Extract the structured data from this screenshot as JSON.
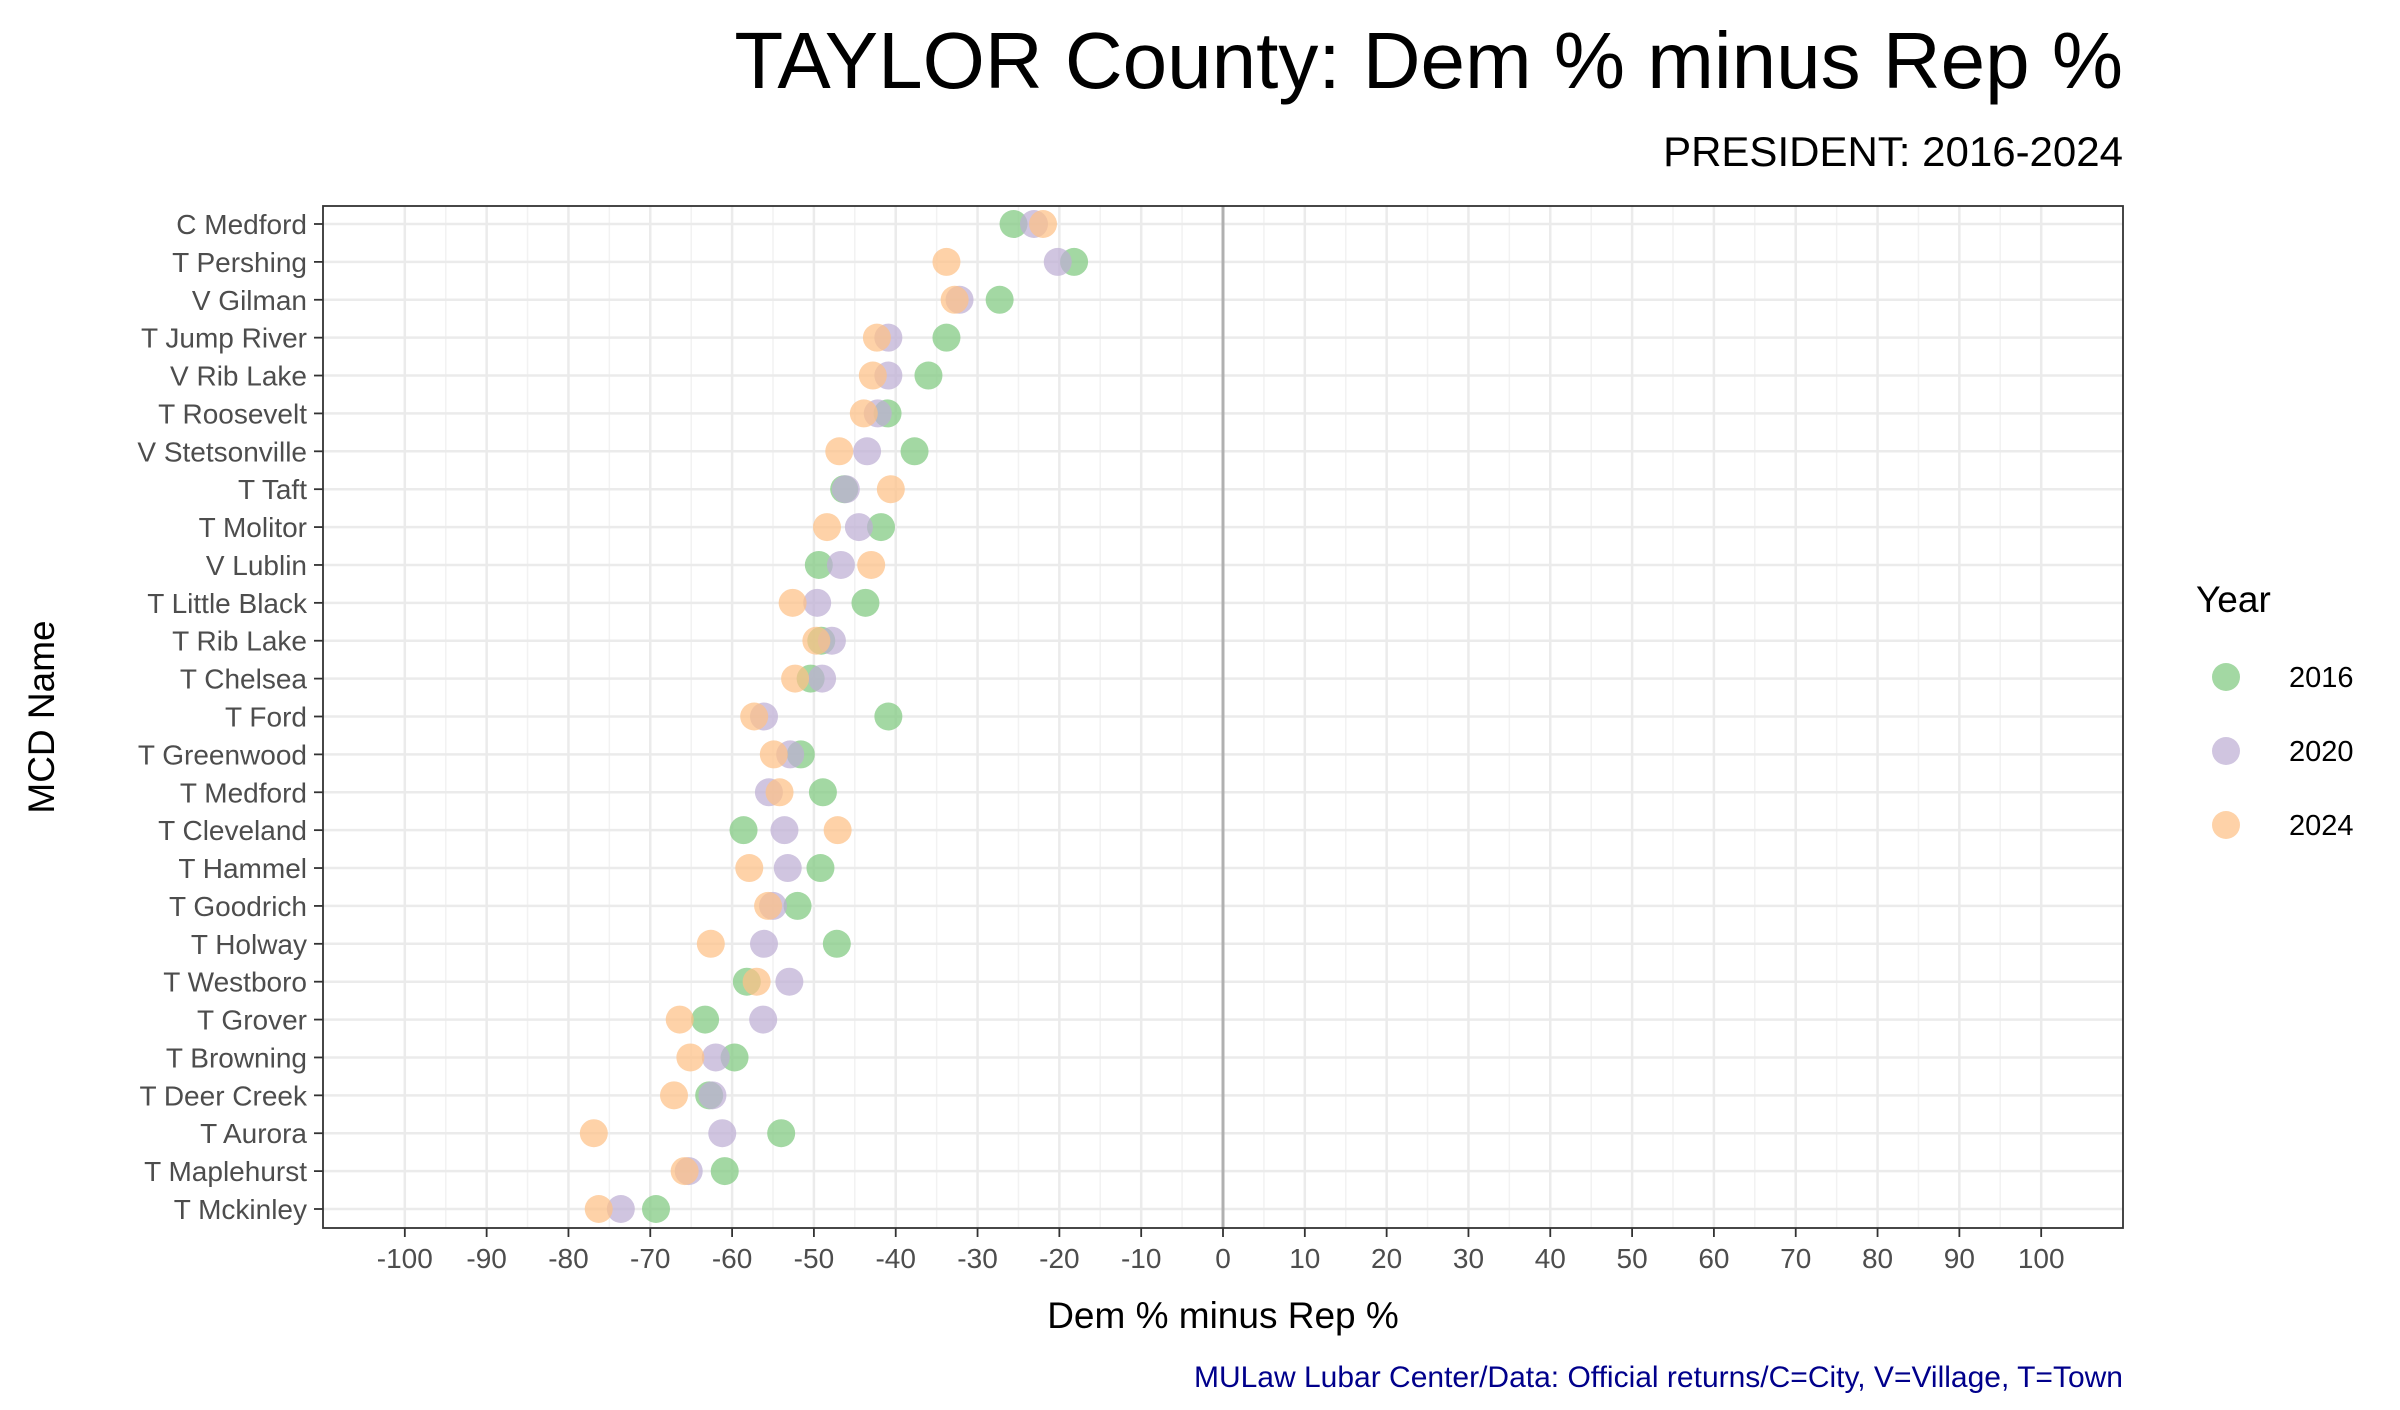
{
  "chart_data": {
    "type": "scatter",
    "title": "TAYLOR County: Dem % minus Rep %",
    "subtitle": "PRESIDENT: 2016-2024",
    "xlabel": "Dem % minus Rep %",
    "ylabel": "MCD Name",
    "caption": "MULaw Lubar Center/Data: Official returns/C=City, V=Village, T=Town",
    "xlim": [
      -110,
      110
    ],
    "x_ticks": [
      -100,
      -90,
      -80,
      -70,
      -60,
      -50,
      -40,
      -30,
      -20,
      -10,
      0,
      10,
      20,
      30,
      40,
      50,
      60,
      70,
      80,
      90,
      100
    ],
    "grid": true,
    "legend": {
      "title": "Year",
      "position": "right"
    },
    "categories": [
      "C Medford",
      "T Pershing",
      "V Gilman",
      "T Jump River",
      "V Rib Lake",
      "T Roosevelt",
      "V Stetsonville",
      "T Taft",
      "T Molitor",
      "V Lublin",
      "T Little Black",
      "T Rib Lake",
      "T Chelsea",
      "T Ford",
      "T Greenwood",
      "T Medford",
      "T Cleveland",
      "T Hammel",
      "T Goodrich",
      "T Holway",
      "T Westboro",
      "T Grover",
      "T Browning",
      "T Deer Creek",
      "T Aurora",
      "T Maplehurst",
      "T Mckinley"
    ],
    "series": [
      {
        "name": "2016",
        "color": "#7fc97f",
        "values": [
          -25.6,
          -18.2,
          -27.3,
          -33.8,
          -36.0,
          -41.0,
          -37.7,
          -46.3,
          -41.8,
          -49.4,
          -43.7,
          -49.1,
          -50.4,
          -40.9,
          -51.6,
          -48.9,
          -58.6,
          -49.2,
          -52.0,
          -47.2,
          -58.2,
          -63.3,
          -59.7,
          -62.8,
          -54.0,
          -60.9,
          -69.3
        ]
      },
      {
        "name": "2020",
        "color": "#beaed4",
        "values": [
          -23.1,
          -20.2,
          -32.2,
          -40.9,
          -40.9,
          -42.2,
          -43.5,
          -46.1,
          -44.5,
          -46.7,
          -49.6,
          -47.8,
          -49.0,
          -56.1,
          -52.9,
          -55.5,
          -53.6,
          -53.2,
          -55.0,
          -56.1,
          -53.0,
          -56.2,
          -62.0,
          -62.4,
          -61.2,
          -65.3,
          -73.6
        ]
      },
      {
        "name": "2024",
        "color": "#fdc086",
        "values": [
          -22.0,
          -33.8,
          -32.8,
          -42.3,
          -42.8,
          -43.9,
          -46.9,
          -40.6,
          -48.4,
          -43.0,
          -52.6,
          -49.7,
          -52.3,
          -57.3,
          -54.9,
          -54.2,
          -47.1,
          -57.9,
          -55.6,
          -62.6,
          -57.0,
          -66.4,
          -65.1,
          -67.1,
          -76.9,
          -65.8,
          -76.3
        ]
      }
    ]
  }
}
